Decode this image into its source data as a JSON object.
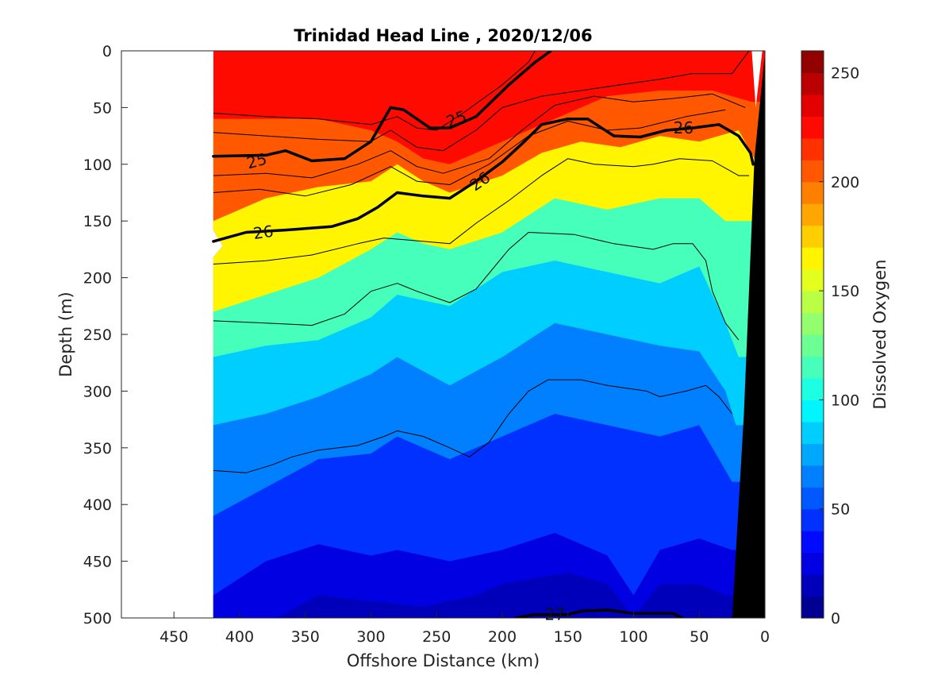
{
  "chart_data": {
    "type": "contour",
    "title": "Trinidad Head Line , 2020/12/06",
    "xlabel": "Offshore Distance (km)",
    "ylabel": "Depth (m)",
    "colorbar_label": "Dissolved Oxygen",
    "x_reversed": true,
    "xlim": [
      490,
      0
    ],
    "ylim": [
      0,
      500
    ],
    "y_reversed": true,
    "xticks": [
      450,
      400,
      350,
      300,
      250,
      200,
      150,
      100,
      50,
      0
    ],
    "yticks": [
      0,
      50,
      100,
      150,
      200,
      250,
      300,
      350,
      400,
      450,
      500
    ],
    "colorbar": {
      "range": [
        0,
        260
      ],
      "ticks": [
        0,
        50,
        100,
        150,
        200,
        250
      ],
      "level_step": 10,
      "colormap": "jet"
    },
    "data_extent_km": [
      0,
      420
    ],
    "oxygen_surfaces": [
      {
        "value": 210,
        "points": [
          [
            420,
            60
          ],
          [
            380,
            60
          ],
          [
            340,
            60
          ],
          [
            300,
            70
          ],
          [
            280,
            80
          ],
          [
            260,
            95
          ],
          [
            240,
            100
          ],
          [
            200,
            80
          ],
          [
            160,
            60
          ],
          [
            120,
            40
          ],
          [
            80,
            35
          ],
          [
            40,
            35
          ],
          [
            10,
            45
          ]
        ]
      },
      {
        "value": 170,
        "points": [
          [
            420,
            150
          ],
          [
            380,
            130
          ],
          [
            340,
            120
          ],
          [
            300,
            115
          ],
          [
            280,
            100
          ],
          [
            260,
            115
          ],
          [
            240,
            125
          ],
          [
            200,
            110
          ],
          [
            170,
            90
          ],
          [
            140,
            80
          ],
          [
            110,
            85
          ],
          [
            80,
            75
          ],
          [
            50,
            80
          ],
          [
            20,
            70
          ],
          [
            8,
            95
          ]
        ]
      },
      {
        "value": 120,
        "points": [
          [
            420,
            230
          ],
          [
            380,
            215
          ],
          [
            340,
            200
          ],
          [
            300,
            175
          ],
          [
            280,
            160
          ],
          [
            260,
            170
          ],
          [
            240,
            175
          ],
          [
            200,
            160
          ],
          [
            160,
            130
          ],
          [
            120,
            140
          ],
          [
            80,
            130
          ],
          [
            50,
            130
          ],
          [
            30,
            150
          ],
          [
            15,
            150
          ]
        ]
      },
      {
        "value": 90,
        "points": [
          [
            420,
            270
          ],
          [
            380,
            260
          ],
          [
            340,
            255
          ],
          [
            300,
            235
          ],
          [
            280,
            215
          ],
          [
            240,
            225
          ],
          [
            200,
            195
          ],
          [
            160,
            185
          ],
          [
            120,
            195
          ],
          [
            80,
            205
          ],
          [
            50,
            190
          ],
          [
            30,
            240
          ],
          [
            20,
            270
          ]
        ]
      },
      {
        "value": 70,
        "points": [
          [
            420,
            330
          ],
          [
            380,
            320
          ],
          [
            340,
            305
          ],
          [
            300,
            285
          ],
          [
            280,
            270
          ],
          [
            240,
            295
          ],
          [
            200,
            270
          ],
          [
            160,
            240
          ],
          [
            120,
            250
          ],
          [
            80,
            260
          ],
          [
            50,
            265
          ],
          [
            30,
            300
          ],
          [
            22,
            330
          ]
        ]
      },
      {
        "value": 50,
        "points": [
          [
            420,
            410
          ],
          [
            380,
            385
          ],
          [
            340,
            360
          ],
          [
            300,
            355
          ],
          [
            280,
            340
          ],
          [
            240,
            360
          ],
          [
            200,
            340
          ],
          [
            160,
            320
          ],
          [
            120,
            330
          ],
          [
            80,
            340
          ],
          [
            50,
            330
          ],
          [
            25,
            380
          ]
        ]
      },
      {
        "value": 30,
        "points": [
          [
            420,
            480
          ],
          [
            380,
            450
          ],
          [
            340,
            435
          ],
          [
            300,
            445
          ],
          [
            280,
            440
          ],
          [
            240,
            450
          ],
          [
            200,
            440
          ],
          [
            160,
            425
          ],
          [
            120,
            445
          ],
          [
            100,
            480
          ],
          [
            80,
            440
          ],
          [
            50,
            430
          ],
          [
            25,
            440
          ]
        ]
      },
      {
        "value": 20,
        "points": [
          [
            380,
            505
          ],
          [
            340,
            480
          ],
          [
            300,
            485
          ],
          [
            260,
            490
          ],
          [
            220,
            480
          ],
          [
            200,
            470
          ],
          [
            150,
            460
          ],
          [
            120,
            470
          ],
          [
            100,
            500
          ],
          [
            80,
            470
          ],
          [
            50,
            470
          ],
          [
            30,
            480
          ]
        ]
      }
    ],
    "density_contours": [
      {
        "label": "25",
        "thick": true,
        "points": [
          [
            420,
            93
          ],
          [
            380,
            92
          ],
          [
            365,
            88
          ],
          [
            345,
            97
          ],
          [
            320,
            95
          ],
          [
            300,
            80
          ],
          [
            285,
            50
          ],
          [
            275,
            52
          ],
          [
            255,
            68
          ],
          [
            240,
            68
          ],
          [
            220,
            58
          ],
          [
            195,
            30
          ],
          [
            175,
            10
          ],
          [
            163,
            0
          ]
        ]
      },
      {
        "label": "26",
        "thick": true,
        "points": [
          [
            420,
            168
          ],
          [
            395,
            160
          ],
          [
            365,
            158
          ],
          [
            330,
            155
          ],
          [
            310,
            148
          ],
          [
            295,
            138
          ],
          [
            280,
            125
          ],
          [
            260,
            128
          ],
          [
            240,
            130
          ],
          [
            220,
            115
          ],
          [
            200,
            98
          ],
          [
            185,
            82
          ],
          [
            170,
            65
          ],
          [
            150,
            60
          ],
          [
            135,
            60
          ],
          [
            115,
            75
          ],
          [
            95,
            76
          ],
          [
            75,
            70
          ],
          [
            55,
            68
          ],
          [
            35,
            65
          ],
          [
            20,
            75
          ],
          [
            11,
            90
          ],
          [
            9,
            100
          ]
        ]
      },
      {
        "label": "27",
        "thick": true,
        "points": [
          [
            190,
            500
          ],
          [
            175,
            497
          ],
          [
            150,
            497
          ],
          [
            140,
            494
          ],
          [
            120,
            493
          ],
          [
            100,
            496
          ],
          [
            70,
            496
          ],
          [
            63,
            500
          ]
        ]
      }
    ],
    "contour_labels": [
      {
        "text": "25",
        "x": 387,
        "y": 97,
        "rotate": -15
      },
      {
        "text": "25",
        "x": 235,
        "y": 60,
        "rotate": -20
      },
      {
        "text": "26",
        "x": 382,
        "y": 160,
        "rotate": -8
      },
      {
        "text": "26",
        "x": 217,
        "y": 115,
        "rotate": -35
      },
      {
        "text": "26",
        "x": 62,
        "y": 68,
        "rotate": 0
      },
      {
        "text": "27",
        "x": 160,
        "y": 497,
        "rotate": 0
      }
    ],
    "thin_contours": [
      [
        [
          420,
          55
        ],
        [
          380,
          58
        ],
        [
          340,
          60
        ],
        [
          300,
          65
        ],
        [
          280,
          58
        ],
        [
          265,
          68
        ],
        [
          250,
          70
        ],
        [
          230,
          55
        ],
        [
          200,
          30
        ],
        [
          180,
          10
        ],
        [
          175,
          0
        ]
      ],
      [
        [
          420,
          72
        ],
        [
          380,
          75
        ],
        [
          340,
          78
        ],
        [
          300,
          80
        ],
        [
          285,
          70
        ],
        [
          265,
          85
        ],
        [
          245,
          88
        ],
        [
          220,
          70
        ],
        [
          200,
          50
        ],
        [
          170,
          40
        ],
        [
          140,
          35
        ],
        [
          110,
          30
        ],
        [
          80,
          25
        ],
        [
          55,
          20
        ],
        [
          25,
          20
        ],
        [
          12,
          0
        ]
      ],
      [
        [
          420,
          110
        ],
        [
          380,
          108
        ],
        [
          345,
          112
        ],
        [
          310,
          100
        ],
        [
          285,
          88
        ],
        [
          265,
          102
        ],
        [
          245,
          108
        ],
        [
          210,
          95
        ],
        [
          185,
          70
        ],
        [
          160,
          48
        ],
        [
          130,
          40
        ],
        [
          100,
          45
        ],
        [
          70,
          42
        ],
        [
          40,
          38
        ],
        [
          15,
          50
        ]
      ],
      [
        [
          420,
          125
        ],
        [
          385,
          122
        ],
        [
          350,
          128
        ],
        [
          315,
          118
        ],
        [
          285,
          102
        ],
        [
          265,
          115
        ],
        [
          240,
          118
        ],
        [
          210,
          100
        ],
        [
          180,
          75
        ],
        [
          150,
          62
        ],
        [
          120,
          70
        ],
        [
          95,
          68
        ],
        [
          60,
          58
        ],
        [
          30,
          52
        ]
      ],
      [
        [
          420,
          188
        ],
        [
          380,
          185
        ],
        [
          345,
          180
        ],
        [
          310,
          170
        ],
        [
          290,
          165
        ],
        [
          260,
          168
        ],
        [
          240,
          170
        ],
        [
          220,
          152
        ],
        [
          195,
          132
        ],
        [
          170,
          110
        ],
        [
          150,
          95
        ],
        [
          130,
          100
        ],
        [
          100,
          102
        ],
        [
          85,
          100
        ],
        [
          65,
          95
        ],
        [
          40,
          97
        ],
        [
          20,
          110
        ],
        [
          12,
          110
        ]
      ],
      [
        [
          420,
          238
        ],
        [
          380,
          240
        ],
        [
          345,
          242
        ],
        [
          320,
          232
        ],
        [
          300,
          212
        ],
        [
          280,
          205
        ],
        [
          265,
          212
        ],
        [
          240,
          222
        ],
        [
          220,
          210
        ],
        [
          195,
          175
        ],
        [
          180,
          160
        ],
        [
          145,
          162
        ],
        [
          115,
          170
        ],
        [
          85,
          175
        ],
        [
          70,
          170
        ],
        [
          55,
          170
        ],
        [
          45,
          185
        ],
        [
          40,
          212
        ],
        [
          30,
          240
        ],
        [
          20,
          255
        ]
      ],
      [
        [
          420,
          370
        ],
        [
          395,
          372
        ],
        [
          375,
          365
        ],
        [
          360,
          358
        ],
        [
          340,
          352
        ],
        [
          310,
          348
        ],
        [
          290,
          340
        ],
        [
          280,
          335
        ],
        [
          260,
          340
        ],
        [
          240,
          350
        ],
        [
          225,
          358
        ],
        [
          210,
          345
        ],
        [
          195,
          320
        ],
        [
          180,
          300
        ],
        [
          165,
          290
        ],
        [
          140,
          290
        ],
        [
          120,
          295
        ],
        [
          90,
          300
        ],
        [
          80,
          305
        ],
        [
          60,
          300
        ],
        [
          45,
          295
        ],
        [
          35,
          305
        ],
        [
          25,
          320
        ]
      ]
    ]
  }
}
